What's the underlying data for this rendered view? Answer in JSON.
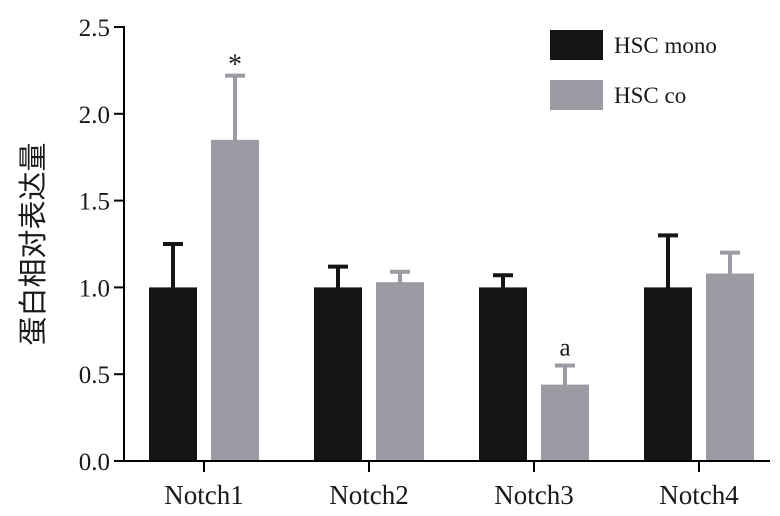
{
  "chart_data": {
    "type": "bar",
    "title": "",
    "xlabel": "",
    "ylabel": "蛋白相对表达量",
    "ylim": [
      0,
      2.5
    ],
    "yticks": [
      0.0,
      0.5,
      1.0,
      1.5,
      2.0,
      2.5
    ],
    "ytick_labels": [
      "0.0",
      "0.5",
      "1.0",
      "1.5",
      "2.0",
      "2.5"
    ],
    "categories": [
      "Notch1",
      "Notch2",
      "Notch3",
      "Notch4"
    ],
    "series": [
      {
        "name": "HSC mono",
        "color": "#151515",
        "values": [
          1.0,
          1.0,
          1.0,
          1.0
        ],
        "errors": [
          0.25,
          0.12,
          0.07,
          0.3
        ]
      },
      {
        "name": "HSC co",
        "color": "#9b9ca3",
        "values": [
          1.85,
          1.03,
          0.44,
          1.08
        ],
        "errors": [
          0.37,
          0.06,
          0.11,
          0.12
        ]
      }
    ],
    "annotations": [
      {
        "text": "*",
        "category": "Notch1",
        "series": "HSC co"
      },
      {
        "text": "a",
        "category": "Notch3",
        "series": "HSC co"
      }
    ],
    "legend_position": "top-right",
    "grid": false
  }
}
